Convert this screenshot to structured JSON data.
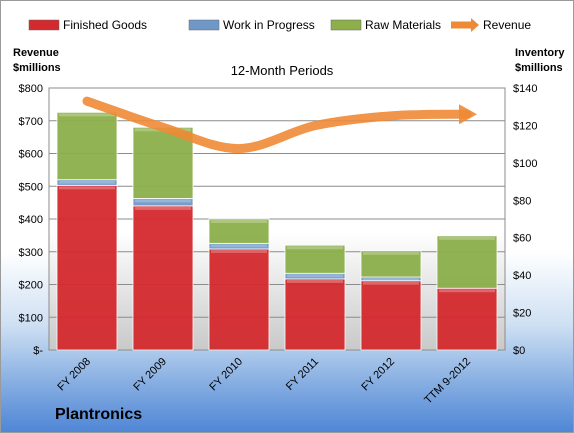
{
  "company": "Plantronics",
  "chart_data": {
    "type": "bar",
    "title": "12-Month Periods",
    "left_axis_title": [
      "Revenue",
      "$millions"
    ],
    "right_axis_title": [
      "Inventory",
      "$millions"
    ],
    "categories": [
      "FY 2008",
      "FY 2009",
      "FY 2010",
      "FY 2011",
      "FY 2012",
      "TTM 9-2012"
    ],
    "left_ylim": [
      0,
      800
    ],
    "left_ticks": [
      0,
      100,
      200,
      300,
      400,
      500,
      600,
      700,
      800
    ],
    "left_tick_labels": [
      "$-",
      "$100",
      "$200",
      "$300",
      "$400",
      "$500",
      "$600",
      "$700",
      "$800"
    ],
    "right_ylim": [
      0,
      140
    ],
    "right_ticks": [
      0,
      20,
      40,
      60,
      80,
      100,
      120,
      140
    ],
    "right_tick_labels": [
      "$0",
      "$20",
      "$40",
      "$60",
      "$80",
      "$100",
      "$120",
      "$140"
    ],
    "stacked": true,
    "series": [
      {
        "name": "Finished Goods",
        "axis": "right",
        "color": "#d42a2e",
        "values": [
          88,
          77,
          54,
          38,
          37,
          33
        ]
      },
      {
        "name": "Work in Progress",
        "axis": "right",
        "color": "#6f98c9",
        "values": [
          3,
          4,
          3,
          3,
          2,
          0
        ]
      },
      {
        "name": "Raw Materials",
        "axis": "right",
        "color": "#8caf4a",
        "values": [
          36,
          38,
          13,
          15,
          14,
          28
        ]
      },
      {
        "name": "Revenue",
        "axis": "left",
        "type": "line",
        "color": "#ee8a35",
        "values": [
          760,
          680,
          615,
          685,
          715,
          720
        ]
      }
    ],
    "grid": true,
    "legend": "top"
  }
}
